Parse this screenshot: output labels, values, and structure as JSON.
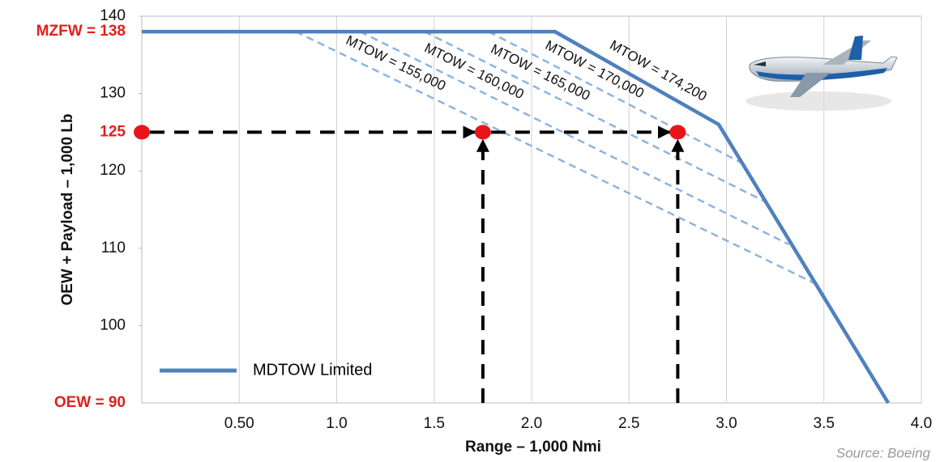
{
  "chart_data": {
    "type": "line",
    "xlabel": "Range – 1,000 Nmi",
    "ylabel": "OEW + Payload – 1,000 Lb",
    "source": "Source:  Boeing",
    "xlim": [
      0,
      4
    ],
    "ylim": [
      90,
      140
    ],
    "xticks": [
      {
        "value": 0.5,
        "label": "0.50"
      },
      {
        "value": 1,
        "label": "1.0"
      },
      1.5,
      {
        "value": 2,
        "label": "2.0"
      },
      2.5,
      {
        "value": 3,
        "label": "3.0"
      },
      3.5,
      {
        "value": 4,
        "label": "4.0"
      }
    ],
    "yticks": [
      100,
      110,
      120,
      130,
      140
    ],
    "reference_yticks": [
      {
        "value": 138,
        "label": "MZFW = 138"
      },
      125,
      {
        "value": 90,
        "label": "OEW = 90"
      }
    ],
    "reference_color": "#e0201b",
    "grid": "x",
    "series": [
      {
        "name": "MDTOW Limited",
        "color": "#4f81bd",
        "x": [
          0,
          2.12,
          2.96,
          3.83
        ],
        "values": [
          138,
          138,
          126,
          90
        ],
        "segment_label": "MTOW = 174,200"
      }
    ],
    "mtow_lines": {
      "color": "#8db4e2",
      "lines": [
        {
          "name": "MTOW = 155,000",
          "x": [
            0.79,
            3.45
          ],
          "values": [
            138,
            105.5
          ]
        },
        {
          "name": "MTOW = 160,000",
          "x": [
            1.12,
            3.32
          ],
          "values": [
            138,
            110.5
          ]
        },
        {
          "name": "MTOW = 165,000",
          "x": [
            1.45,
            3.2
          ],
          "values": [
            138,
            116
          ]
        },
        {
          "name": "MTOW = 170,000",
          "x": [
            1.78,
            3.08
          ],
          "values": [
            138,
            121
          ]
        }
      ]
    },
    "points": {
      "color": "#e8141a",
      "x": [
        0,
        1.75,
        2.75
      ],
      "values": [
        125,
        125,
        125
      ]
    }
  }
}
